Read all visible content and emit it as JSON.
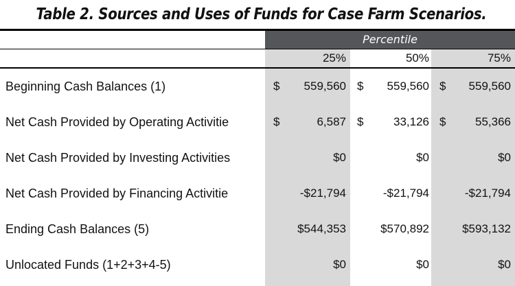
{
  "title": "Table 2.  Sources and Uses of Funds for Case Farm Scenarios.",
  "column_group": "Percentile",
  "columns": [
    "25%",
    "50%",
    "75%"
  ],
  "rows": [
    {
      "label": "Beginning Cash Balances (1)",
      "cells": [
        {
          "currency": "$",
          "value": "559,560"
        },
        {
          "currency": "$",
          "value": "559,560"
        },
        {
          "currency": "$",
          "value": "559,560"
        }
      ]
    },
    {
      "label": "Net Cash Provided by Operating Activitie",
      "cells": [
        {
          "currency": "$",
          "value": "6,587"
        },
        {
          "currency": "$",
          "value": "33,126"
        },
        {
          "currency": "$",
          "value": "55,366"
        }
      ]
    },
    {
      "label": "Net Cash Provided by Investing Activities",
      "cells": [
        {
          "currency": "",
          "value": "$0"
        },
        {
          "currency": "",
          "value": "$0"
        },
        {
          "currency": "",
          "value": "$0"
        }
      ]
    },
    {
      "label": "Net Cash Provided by Financing Activitie",
      "cells": [
        {
          "currency": "",
          "value": "-$21,794"
        },
        {
          "currency": "",
          "value": "-$21,794"
        },
        {
          "currency": "",
          "value": "-$21,794"
        }
      ]
    },
    {
      "label": "Ending Cash Balances (5)",
      "cells": [
        {
          "currency": "",
          "value": "$544,353"
        },
        {
          "currency": "",
          "value": "$570,892"
        },
        {
          "currency": "",
          "value": "$593,132"
        }
      ]
    },
    {
      "label": "Unlocated Funds (1+2+3+4-5)",
      "cells": [
        {
          "currency": "",
          "value": "$0"
        },
        {
          "currency": "",
          "value": "$0"
        },
        {
          "currency": "",
          "value": "$0"
        }
      ]
    }
  ],
  "colors": {
    "header_band": "#555659",
    "shaded_column": "#d9d9d9",
    "rule": "#000000"
  }
}
